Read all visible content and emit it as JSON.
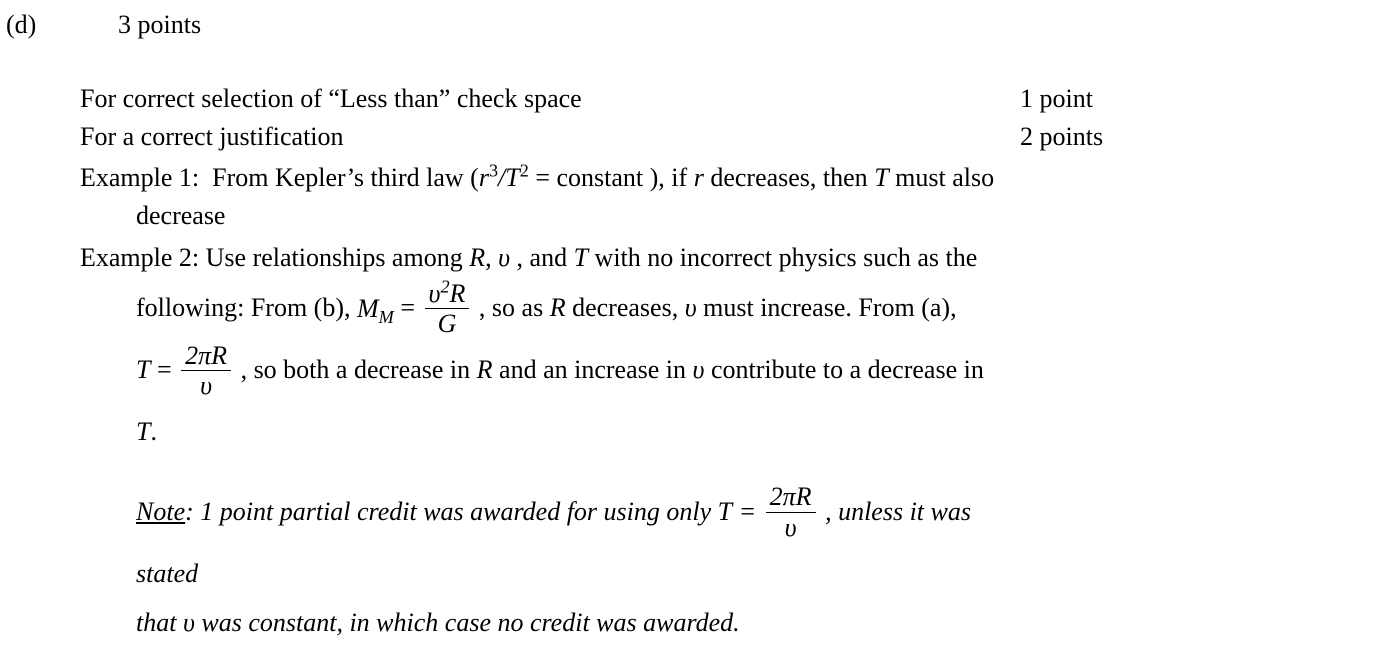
{
  "colors": {
    "text": "#000000",
    "background": "#ffffff"
  },
  "font": {
    "family": "Times New Roman",
    "base_size_pt": 20
  },
  "header": {
    "part_label": "(d)",
    "total_points": "3 points"
  },
  "criteria": [
    {
      "text": "For correct selection of “Less than” check space",
      "points": "1 point"
    },
    {
      "text": "For a correct justification",
      "points": "2 points"
    }
  ],
  "example1": {
    "lead": "Example 1:  From Kepler’s third law (",
    "kepler_frac_num": "r",
    "kepler_sup1": "3",
    "kepler_slash": "/",
    "kepler_den": "T",
    "kepler_sup2": "2",
    "after_paren": " = constant ), if ",
    "var_r": "r",
    "mid": " decreases, then ",
    "var_T": "T",
    "tail": " must also",
    "line2": "decrease"
  },
  "example2": {
    "lead": "Example 2: Use relationships among ",
    "R": "R",
    "comma1": ", ",
    "v": "υ",
    "comma2": " , and ",
    "T": "T",
    "tail1": " with no incorrect physics such as the",
    "line2_pre": "following: From (b),  ",
    "MM": "M",
    "MMsub": "M",
    "eq": "  =  ",
    "frac1_num_a": "υ",
    "frac1_num_sup": "2",
    "frac1_num_b": "R",
    "frac1_den": "G",
    "line2_mid": " , so as ",
    "line2_R": "R",
    "line2_mid2": " decreases,  ",
    "line2_v": "υ",
    "line2_tail": "  must increase. From (a),",
    "line3_T": "T",
    "line3_eq": "  =  ",
    "frac2_num": "2πR",
    "frac2_den": "υ",
    "line3_mid": " , so both a decrease in ",
    "line3_R": "R",
    "line3_mid2": " and an increase in  ",
    "line3_v": "υ",
    "line3_tail": "  contribute to a decrease in ",
    "line3_T2": "T",
    "line3_end": "."
  },
  "note": {
    "label": "Note",
    "colon": ": ",
    "pre": "1 point partial credit was awarded for using only  ",
    "T": "T",
    "eq": "  =  ",
    "frac_num": "2πR",
    "frac_den": "υ",
    "mid": " ,  unless it was stated",
    "line2_pre": "that  ",
    "v": "υ",
    "line2_tail": "  was constant, in which case no credit was awarded."
  }
}
